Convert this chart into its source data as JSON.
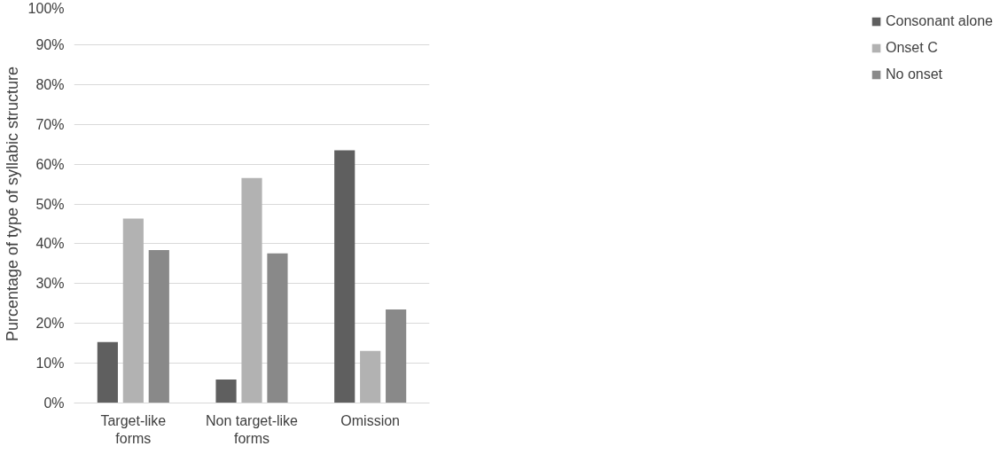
{
  "chart_data": {
    "type": "bar",
    "ylabel": "Purcentage of type of syllabic structure",
    "categories": [
      "Target-like\nforms",
      "Non target-like\nforms",
      "Omission"
    ],
    "series": [
      {
        "name": "Consonant alone",
        "color": "#5f5f5f",
        "values": [
          15.3,
          5.9,
          63.5
        ]
      },
      {
        "name": "Onset C",
        "color": "#b2b2b2",
        "values": [
          46.3,
          56.5,
          13.1
        ]
      },
      {
        "name": "No onset",
        "color": "#898989",
        "values": [
          38.4,
          37.6,
          23.5
        ]
      }
    ],
    "ylim": [
      0,
      100
    ],
    "yticks": [
      {
        "value": 0,
        "label": "0%"
      },
      {
        "value": 10,
        "label": "10%"
      },
      {
        "value": 20,
        "label": "20%"
      },
      {
        "value": 30,
        "label": "30%"
      },
      {
        "value": 40,
        "label": "40%"
      },
      {
        "value": 50,
        "label": "50%"
      },
      {
        "value": 60,
        "label": "60%"
      },
      {
        "value": 70,
        "label": "70%"
      },
      {
        "value": 80,
        "label": "80%"
      },
      {
        "value": 90,
        "label": "90%"
      },
      {
        "value": 100,
        "label": "100%"
      }
    ],
    "grid": "y",
    "legend": "right"
  }
}
